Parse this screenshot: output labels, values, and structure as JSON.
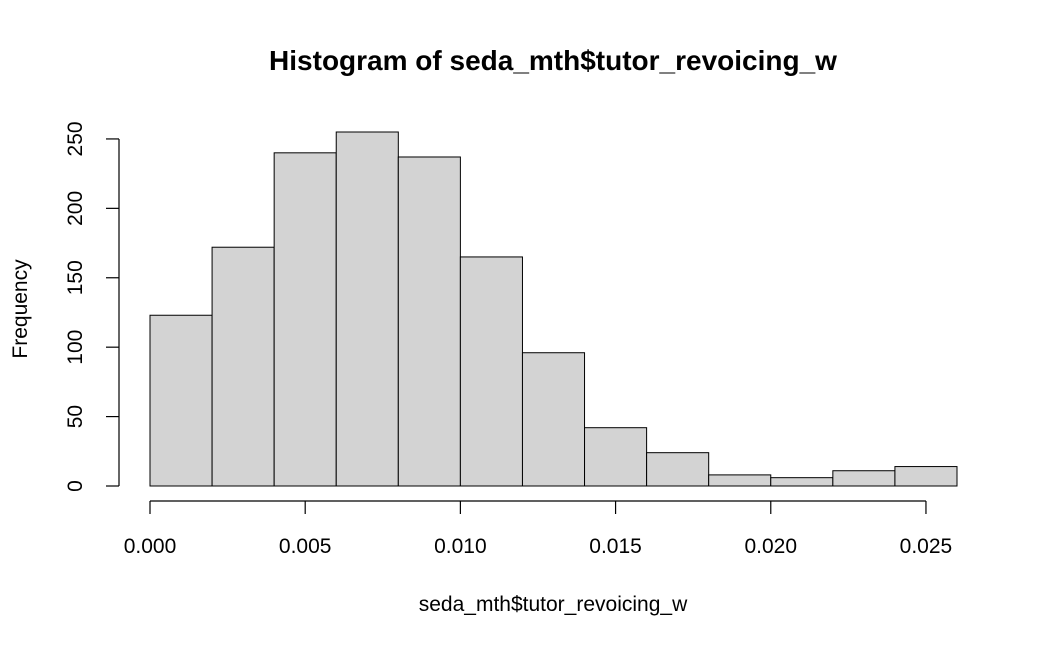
{
  "chart_data": {
    "type": "bar",
    "title": "Histogram of seda_mth$tutor_revoicing_w",
    "xlabel": "seda_mth$tutor_revoicing_w",
    "ylabel": "Frequency",
    "bins": [
      {
        "x0": 0.0,
        "x1": 0.002,
        "value": 123
      },
      {
        "x0": 0.002,
        "x1": 0.004,
        "value": 172
      },
      {
        "x0": 0.004,
        "x1": 0.006,
        "value": 240
      },
      {
        "x0": 0.006,
        "x1": 0.008,
        "value": 255
      },
      {
        "x0": 0.008,
        "x1": 0.01,
        "value": 237
      },
      {
        "x0": 0.01,
        "x1": 0.012,
        "value": 165
      },
      {
        "x0": 0.012,
        "x1": 0.014,
        "value": 96
      },
      {
        "x0": 0.014,
        "x1": 0.016,
        "value": 42
      },
      {
        "x0": 0.016,
        "x1": 0.018,
        "value": 24
      },
      {
        "x0": 0.018,
        "x1": 0.02,
        "value": 8
      },
      {
        "x0": 0.02,
        "x1": 0.022,
        "value": 6
      },
      {
        "x0": 0.022,
        "x1": 0.024,
        "value": 11
      },
      {
        "x0": 0.024,
        "x1": 0.026,
        "value": 14
      }
    ],
    "xlim": [
      0.0,
      0.026
    ],
    "ylim": [
      0,
      255
    ],
    "x_ticks": [
      0.0,
      0.005,
      0.01,
      0.015,
      0.02,
      0.025
    ],
    "x_tick_labels": [
      "0.000",
      "0.005",
      "0.010",
      "0.015",
      "0.020",
      "0.025"
    ],
    "y_ticks": [
      0,
      50,
      100,
      150,
      200,
      250
    ],
    "y_tick_labels": [
      "0",
      "50",
      "100",
      "150",
      "200",
      "250"
    ],
    "grid": false,
    "colors": {
      "bar_fill": "#d3d3d3",
      "bar_stroke": "#000000"
    }
  }
}
